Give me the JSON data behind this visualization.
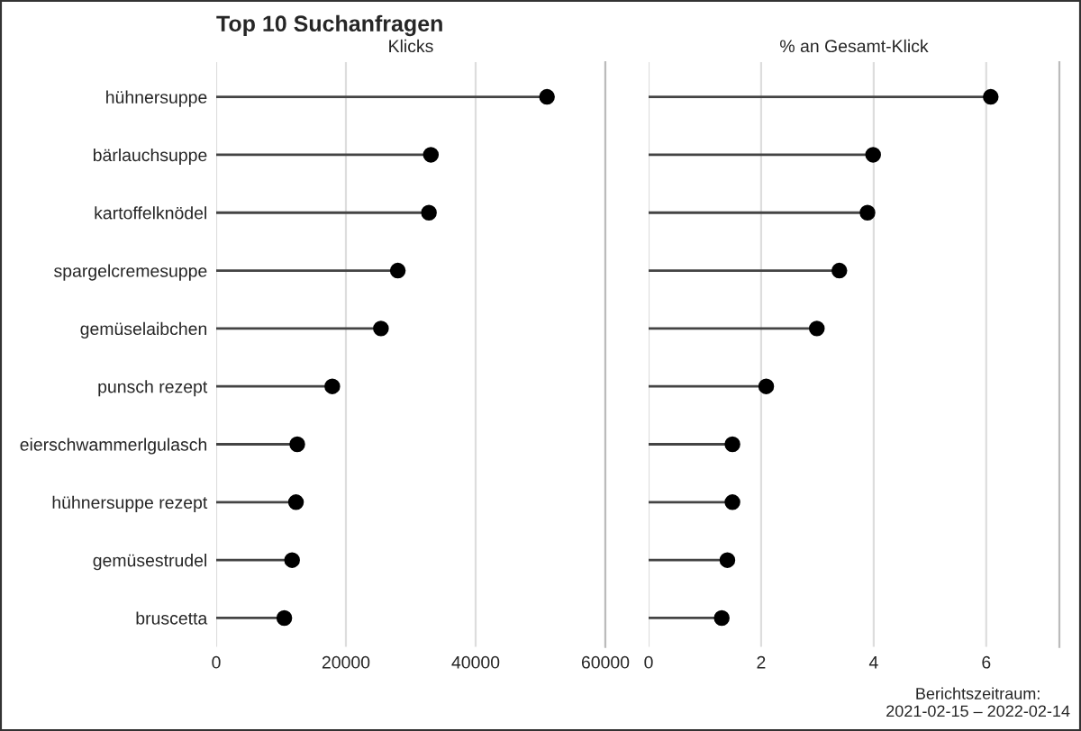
{
  "chart_data": [
    {
      "type": "lollipop",
      "title": "Top 10 Suchanfragen",
      "subtitle": "Klicks",
      "categories": [
        "hühnersuppe",
        "bärlauchsuppe",
        "kartoffelknödel",
        "spargelcremesuppe",
        "gemüselaibchen",
        "punsch rezept",
        "eierschwammerlgulasch",
        "hühnersuppe rezept",
        "gemüsestrudel",
        "bruscetta"
      ],
      "orientation": "horizontal",
      "series": [
        {
          "color": "#000000",
          "values": [
            51000,
            33100,
            32800,
            28000,
            25400,
            17900,
            12500,
            12300,
            11700,
            10500
          ]
        }
      ],
      "xlim": [
        0,
        60000
      ],
      "xticks": [
        0,
        20000,
        40000,
        60000
      ],
      "grid": "x",
      "marker": "circle"
    },
    {
      "type": "lollipop",
      "subtitle": "% an Gesamt-Klick",
      "orientation": "horizontal",
      "series": [
        {
          "color": "#000000",
          "values": [
            6.08,
            3.99,
            3.89,
            3.39,
            2.99,
            2.09,
            1.49,
            1.49,
            1.4,
            1.3
          ]
        }
      ],
      "xlim": [
        0,
        7.3
      ],
      "xticks": [
        0,
        2,
        4,
        6
      ],
      "grid": "x",
      "marker": "circle",
      "tick_labels": "x",
      "annotations": [
        "Berichtszeitraum:\n2021-02-15 – 2022-02-14"
      ]
    }
  ]
}
